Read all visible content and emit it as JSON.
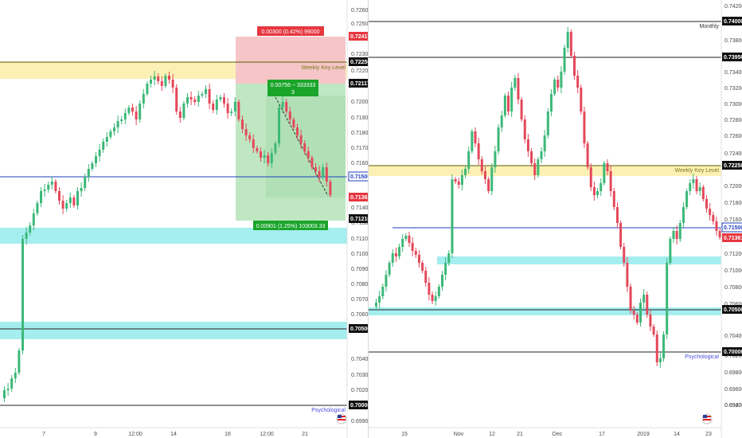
{
  "colors": {
    "bull": "#3cb878",
    "bear": "#e4485a",
    "support_zone": "#a5eef0",
    "key_zone": "#fdf0b5",
    "price_line": "#1f3fbf",
    "risk_zone": "#f6c5c8",
    "reward_zone": "#bfe7c2",
    "tag_red": "#e63740",
    "tag_green": "#1aa52a"
  },
  "left_chart": {
    "price_ticks": [
      "0.72600",
      "0.72500",
      "0.72300",
      "0.72200",
      "0.72000",
      "0.71900",
      "0.71800",
      "0.71700",
      "0.71600",
      "0.71400",
      "0.71300",
      "0.71100",
      "0.71000",
      "0.70900",
      "0.70800",
      "0.70700",
      "0.70600",
      "0.70400",
      "0.70300",
      "0.70200",
      "0.70100",
      "0.70000",
      "0.69900"
    ],
    "price_tags": [
      {
        "value": "0.72417",
        "kind": "red"
      },
      {
        "value": "0.72250",
        "kind": "black"
      },
      {
        "value": "0.72117",
        "kind": "black"
      },
      {
        "value": "0.71500",
        "kind": "blue"
      },
      {
        "value": "0.71361",
        "kind": "red"
      },
      {
        "value": "0.71216",
        "kind": "black"
      },
      {
        "value": "0.70500",
        "kind": "black"
      },
      {
        "value": "0.70000",
        "kind": "black"
      }
    ],
    "time_labels": [
      "7",
      "9",
      "12:00",
      "14",
      "16",
      "12:00",
      "21"
    ],
    "weekly_key_level_label": "Weekly Key Level",
    "psychological_label": "Psychological",
    "risk_label": "0.00300 (0.42%) 99000",
    "position_label_line1": "0.00756 ~ 333333",
    "position_label_line2": "3",
    "target_label": "0.00901 (1.25%) 103003.33"
  },
  "right_chart": {
    "price_ticks": [
      "0.74200",
      "0.73800",
      "0.73600",
      "0.73400",
      "0.73200",
      "0.73000",
      "0.72800",
      "0.72600",
      "0.72400",
      "0.72000",
      "0.71800",
      "0.71600",
      "0.71400",
      "0.71200",
      "0.71000",
      "0.70800",
      "0.70600",
      "0.70400",
      "0.70200",
      "0.69800",
      "0.69600",
      "0.69400",
      "0.69200"
    ],
    "price_tags": [
      {
        "value": "0.74000",
        "kind": "black"
      },
      {
        "value": "0.73950",
        "kind": "black"
      },
      {
        "value": "0.72250",
        "kind": "black"
      },
      {
        "value": "0.71500",
        "kind": "blue"
      },
      {
        "value": "0.71361",
        "kind": "red"
      },
      {
        "value": "0.70500",
        "kind": "black"
      },
      {
        "value": "0.70000",
        "kind": "black"
      }
    ],
    "time_labels": [
      "15",
      "Nov",
      "12",
      "21",
      "Dec",
      "17",
      "2019",
      "14",
      "23"
    ],
    "monthly_label": "Monthly",
    "weekly_key_level_label": "Weekly Key Level",
    "psychological_label": "Psychological"
  }
}
